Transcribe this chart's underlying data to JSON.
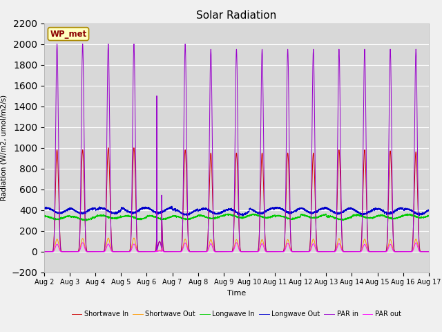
{
  "title": "Solar Radiation",
  "ylabel": "Radiation (W/m2, umol/m2/s)",
  "xlabel": "Time",
  "site_label": "WP_met",
  "ylim": [
    -200,
    2200
  ],
  "yticks": [
    -200,
    0,
    200,
    400,
    600,
    800,
    1000,
    1200,
    1400,
    1600,
    1800,
    2000,
    2200
  ],
  "xstart_day": 2,
  "xend_day": 17,
  "n_days": 15,
  "points_per_day": 288,
  "colors": {
    "shortwave_in": "#cc0000",
    "shortwave_out": "#ff9900",
    "longwave_in": "#00cc00",
    "longwave_out": "#0000cc",
    "par_in": "#9900cc",
    "par_out": "#ff00ff"
  },
  "legend_labels": [
    "Shortwave In",
    "Shortwave Out",
    "Longwave In",
    "Longwave Out",
    "PAR in",
    "PAR out"
  ],
  "background_color": "#d8d8d8",
  "figure_background": "#f0f0f0"
}
